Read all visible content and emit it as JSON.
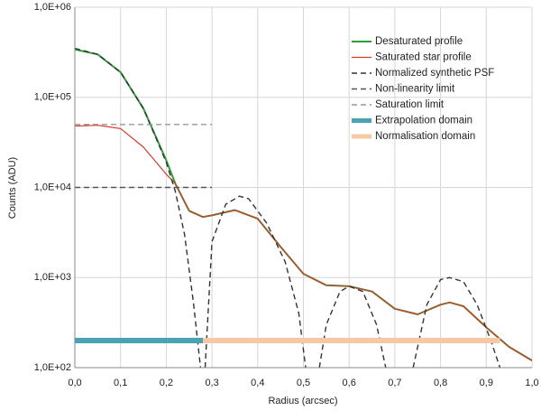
{
  "chart_data": {
    "type": "line",
    "ylabel": "Counts (ADU)",
    "xlabel": "Radius (arcsec)",
    "log_y": true,
    "grid": true,
    "legend": "upper right",
    "xlim": [
      0,
      1
    ],
    "ylim": [
      100,
      1000000
    ],
    "xticks": [
      {
        "value": 0,
        "label": "0,0"
      },
      {
        "value": 0.1,
        "label": "0,1"
      },
      {
        "value": 0.2,
        "label": "0,2"
      },
      {
        "value": 0.3,
        "label": "0,3"
      },
      {
        "value": 0.4,
        "label": "0,4"
      },
      {
        "value": 0.5,
        "label": "0,5"
      },
      {
        "value": 0.6,
        "label": "0,6"
      },
      {
        "value": 0.7,
        "label": "0,7"
      },
      {
        "value": 0.8,
        "label": "0,8"
      },
      {
        "value": 0.9,
        "label": "0,9"
      },
      {
        "value": 1,
        "label": "1,0"
      }
    ],
    "yticks": [
      {
        "value": 100,
        "label": "1,0E+02"
      },
      {
        "value": 1000,
        "label": "1,0E+03"
      },
      {
        "value": 10000,
        "label": "1,0E+04"
      },
      {
        "value": 100000,
        "label": "1,0E+05"
      },
      {
        "value": 1000000,
        "label": "1,0E+06"
      }
    ],
    "series": [
      {
        "name": "Desaturated profile",
        "color": "#2e9e3a",
        "width": 2,
        "dashed": false,
        "x": [
          0,
          0.05,
          0.1,
          0.15,
          0.2,
          0.22,
          0.25,
          0.28,
          0.3,
          0.35,
          0.4,
          0.45,
          0.5,
          0.55,
          0.6,
          0.65,
          0.7,
          0.75,
          0.8,
          0.82,
          0.85,
          0.9,
          0.95,
          1
        ],
        "values": [
          340000,
          300000,
          190000,
          75000,
          20000,
          11000,
          5500,
          4700,
          4900,
          5600,
          4500,
          2200,
          1100,
          820,
          800,
          700,
          450,
          390,
          500,
          530,
          480,
          280,
          170,
          120
        ]
      },
      {
        "name": "Saturated star profile",
        "color": "#d93a2b",
        "width": 1.2,
        "dashed": false,
        "x": [
          0,
          0.05,
          0.1,
          0.15,
          0.2,
          0.22,
          0.25,
          0.28,
          0.3,
          0.35,
          0.4,
          0.45,
          0.5,
          0.55,
          0.6,
          0.65,
          0.7,
          0.75,
          0.8,
          0.82,
          0.85,
          0.9,
          0.95,
          1
        ],
        "values": [
          48000,
          49000,
          45000,
          28000,
          14000,
          11000,
          5500,
          4700,
          4900,
          5600,
          4500,
          2200,
          1100,
          820,
          800,
          700,
          450,
          390,
          500,
          530,
          480,
          280,
          170,
          120
        ]
      },
      {
        "name": "Normalized synthetic PSF",
        "color": "#333333",
        "width": 1.4,
        "dashed": true,
        "x": [
          0,
          0.05,
          0.1,
          0.15,
          0.2,
          0.22,
          0.24,
          0.26,
          0.275,
          0.28,
          0.285,
          0.3,
          0.33,
          0.36,
          0.38,
          0.42,
          0.46,
          0.49,
          0.505,
          0.52,
          0.535,
          0.55,
          0.58,
          0.6,
          0.63,
          0.66,
          0.68,
          0.72,
          0.74,
          0.77,
          0.8,
          0.82,
          0.85,
          0.88,
          0.91,
          0.93
        ],
        "values": [
          350000,
          300000,
          190000,
          75000,
          19000,
          9000,
          3000,
          500,
          100,
          null,
          100,
          2500,
          6500,
          8000,
          7500,
          4000,
          1500,
          400,
          100,
          null,
          100,
          300,
          700,
          800,
          700,
          300,
          100,
          null,
          100,
          500,
          950,
          1000,
          900,
          500,
          200,
          100
        ]
      },
      {
        "name": "Non-linearity limit",
        "color": "#555555",
        "width": 1.4,
        "dashed": true,
        "x": [
          0,
          0.3
        ],
        "values": [
          10000,
          10000
        ]
      },
      {
        "name": "Saturation limit",
        "color": "#999999",
        "width": 1.4,
        "dashed": true,
        "x": [
          0,
          0.3
        ],
        "values": [
          50000,
          50000
        ]
      },
      {
        "name": "Extrapolation domain",
        "color": "#4aa3b5",
        "width": 6,
        "dashed": false,
        "x": [
          0,
          0.28
        ],
        "values": [
          200,
          200
        ]
      },
      {
        "name": "Normalisation domain",
        "color": "#f6c9a4",
        "width": 6,
        "dashed": false,
        "x": [
          0.28,
          0.93
        ],
        "values": [
          200,
          200
        ]
      }
    ]
  }
}
